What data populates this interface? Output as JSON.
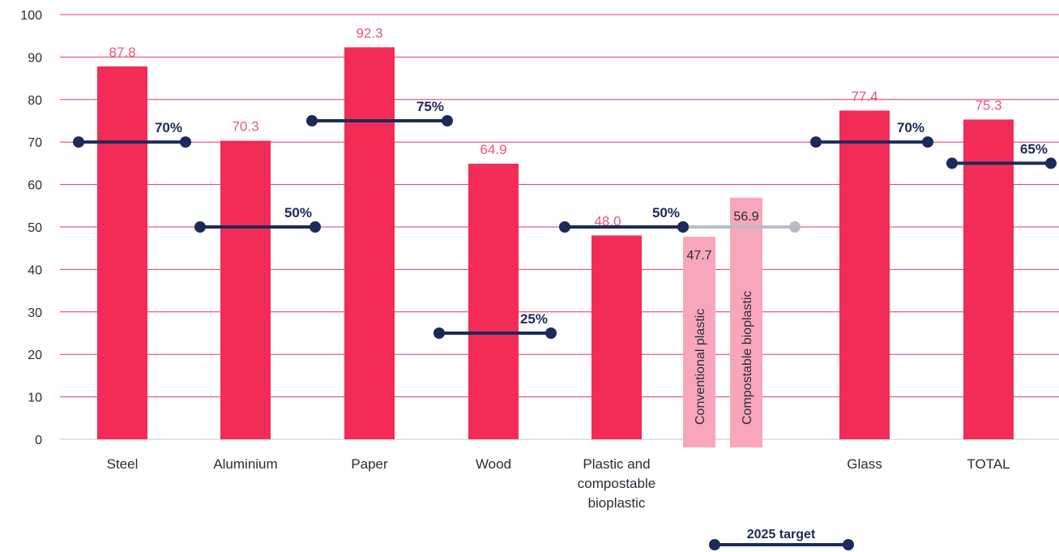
{
  "chart_data": {
    "type": "bar",
    "ylim": [
      0,
      100
    ],
    "yticks": [
      0,
      10,
      20,
      30,
      40,
      50,
      60,
      70,
      80,
      90,
      100
    ],
    "grid": true,
    "categories": [
      {
        "label": [
          "Steel"
        ],
        "value": 87.8,
        "value_label": "87.8",
        "target": 70,
        "target_label": "70%"
      },
      {
        "label": [
          "Aluminium"
        ],
        "value": 70.3,
        "value_label": "70.3",
        "target": 50,
        "target_label": "50%"
      },
      {
        "label": [
          "Paper"
        ],
        "value": 92.3,
        "value_label": "92.3",
        "target": 75,
        "target_label": "75%"
      },
      {
        "label": [
          "Wood"
        ],
        "value": 64.9,
        "value_label": "64.9",
        "target": 25,
        "target_label": "25%"
      },
      {
        "label": [
          "Plastic and",
          "compostable",
          "bioplastic"
        ],
        "value": 48.0,
        "value_label": "48.0",
        "target": 50,
        "target_label": "50%"
      },
      {
        "label": [
          "Glass"
        ],
        "value": 77.4,
        "value_label": "77.4",
        "target": 70,
        "target_label": "70%"
      },
      {
        "label": [
          "TOTAL"
        ],
        "value": 75.3,
        "value_label": "75.3",
        "target": 65,
        "target_label": "65%"
      }
    ],
    "sub_bars": [
      {
        "label": "Conventional plastic",
        "value": 47.7,
        "value_label": "47.7"
      },
      {
        "label": "Compostable bioplastic",
        "value": 56.9,
        "value_label": "56.9"
      }
    ],
    "subcategory_target": 50,
    "legend": {
      "label": "2025 target",
      "placement": "bottom"
    },
    "colors": {
      "bar": "#f22c57",
      "bar_label": "#f05472",
      "sub_bar": "#f7a7b9",
      "target": "#1b2a5a",
      "target_light": "#b9bcc8",
      "grid": "#e8355d",
      "text": "#2b2b3a"
    }
  }
}
